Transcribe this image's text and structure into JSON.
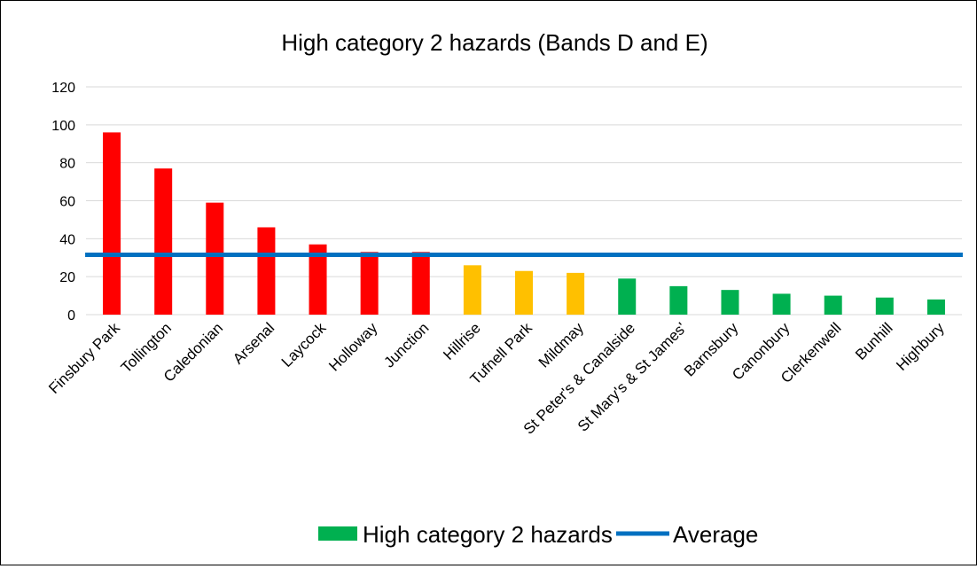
{
  "chart_data": {
    "type": "bar",
    "title": "High category 2 hazards (Bands D and E)",
    "xlabel": "",
    "ylabel": "",
    "ylim": [
      0,
      120
    ],
    "yticks": [
      0,
      20,
      40,
      60,
      80,
      100,
      120
    ],
    "grid": true,
    "legend_position": "bottom",
    "categories": [
      "Finsbury Park",
      "Tollington",
      "Caledonian",
      "Arsenal",
      "Laycock",
      "Holloway",
      "Junction",
      "Hillrise",
      "Tufnell Park",
      "Mildmay",
      "St Peter's & Canalside",
      "St Mary's & St James'",
      "Barnsbury",
      "Canonbury",
      "Clerkenwell",
      "Bunhill",
      "Highbury"
    ],
    "series": [
      {
        "name": "High category 2 hazards",
        "type": "bar",
        "color": "#00b050",
        "values": [
          96,
          77,
          59,
          46,
          37,
          33,
          33,
          26,
          23,
          22,
          19,
          15,
          13,
          11,
          10,
          9,
          8
        ],
        "bar_colors": [
          "#ff0000",
          "#ff0000",
          "#ff0000",
          "#ff0000",
          "#ff0000",
          "#ff0000",
          "#ff0000",
          "#ffc000",
          "#ffc000",
          "#ffc000",
          "#00b050",
          "#00b050",
          "#00b050",
          "#00b050",
          "#00b050",
          "#00b050",
          "#00b050"
        ]
      },
      {
        "name": "Average",
        "type": "line",
        "color": "#0070c0",
        "value": 31.5
      }
    ]
  }
}
